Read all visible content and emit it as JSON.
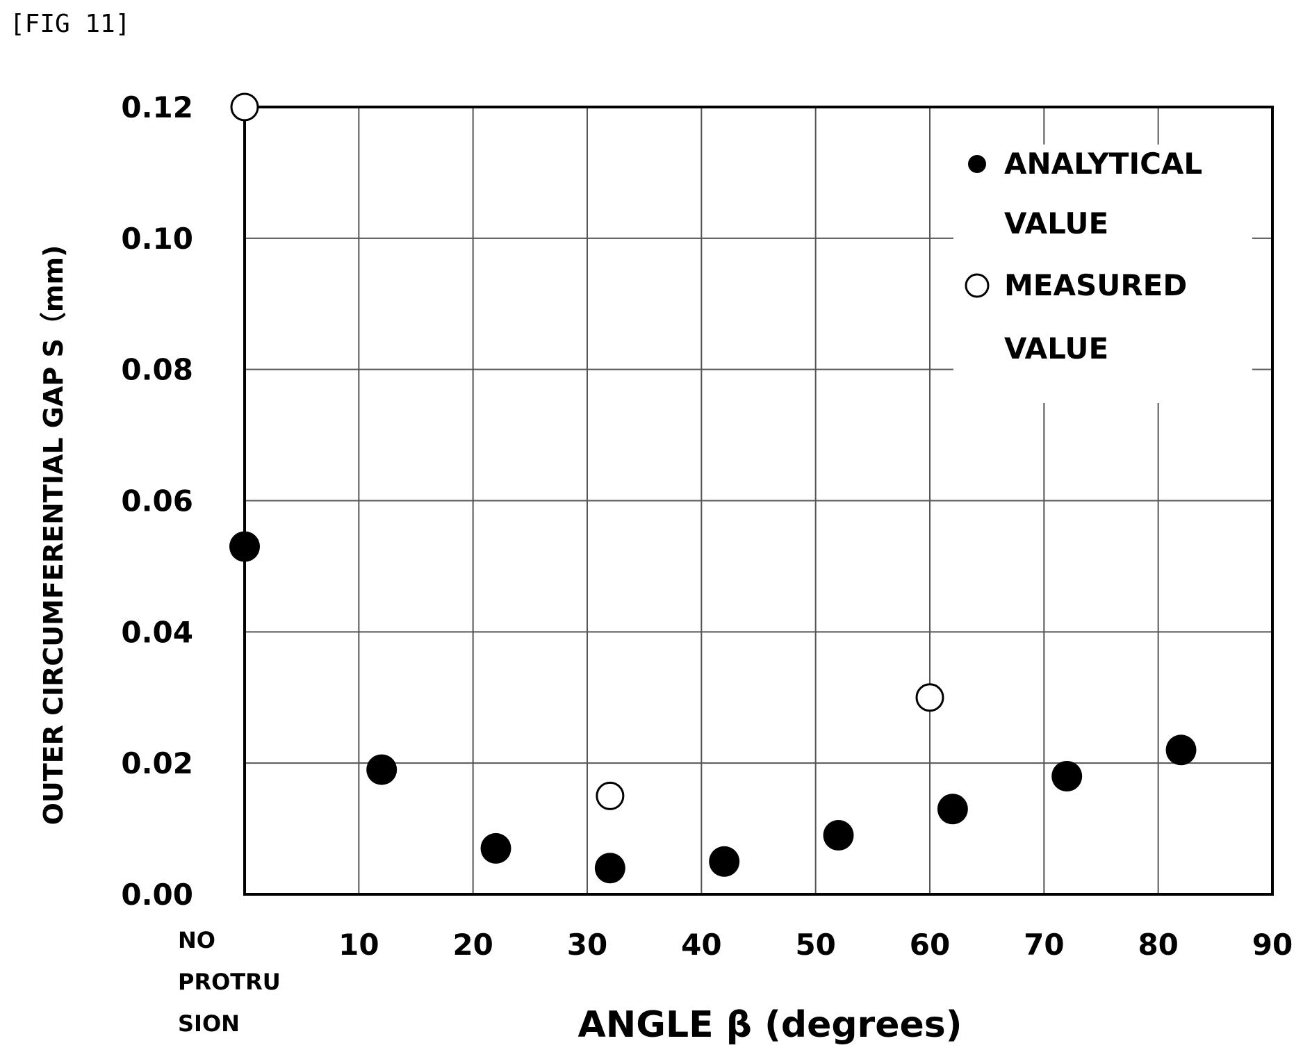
{
  "figure_label": "[FIG 11]",
  "chart_data": {
    "type": "scatter",
    "xlabel": "ANGLE β (degrees)",
    "ylabel": "OUTER CIRCUMFERENTIAL GAP S（mm)",
    "xlim": [
      0,
      90
    ],
    "ylim": [
      0,
      0.12
    ],
    "x_ticks": [
      10,
      20,
      30,
      40,
      50,
      60,
      70,
      80,
      90
    ],
    "y_ticks": [
      "0.00",
      "0.02",
      "0.04",
      "0.06",
      "0.08",
      "0.10",
      "0.12"
    ],
    "x_origin_label": [
      "NO",
      "PROTRU",
      "SION"
    ],
    "grid": true,
    "legend_position": "top-right",
    "series": [
      {
        "name": "ANALYTICAL VALUE",
        "legend_lines": [
          "ANALYTICAL",
          "VALUE"
        ],
        "marker": "filled-circle",
        "points": [
          {
            "x": 0,
            "y": 0.053
          },
          {
            "x": 12,
            "y": 0.019
          },
          {
            "x": 22,
            "y": 0.007
          },
          {
            "x": 32,
            "y": 0.004
          },
          {
            "x": 42,
            "y": 0.005
          },
          {
            "x": 52,
            "y": 0.009
          },
          {
            "x": 62,
            "y": 0.013
          },
          {
            "x": 72,
            "y": 0.018
          },
          {
            "x": 82,
            "y": 0.022
          }
        ]
      },
      {
        "name": "MEASURED VALUE",
        "legend_lines": [
          "MEASURED",
          "VALUE"
        ],
        "marker": "open-circle",
        "points": [
          {
            "x": 0,
            "y": 0.12
          },
          {
            "x": 32,
            "y": 0.015
          },
          {
            "x": 60,
            "y": 0.03
          }
        ]
      }
    ]
  }
}
